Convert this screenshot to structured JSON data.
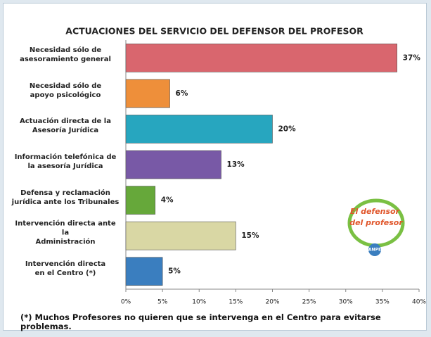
{
  "chart_data": {
    "type": "barh",
    "title": "ACTUACIONES DEL SERVICIO DEL DEFENSOR DEL PROFESOR",
    "categories": [
      "Necesidad sólo de\nasesoramiento general",
      "Necesidad sólo de\napoyo psicológico",
      "Actuación directa de la\nAsesoría Jurídica",
      "Información telefónica de\nla asesoría Jurídica",
      "Defensa y reclamación\njurídica ante los Tribunales",
      "Intervención directa ante\nla\nAdministración",
      "Intervención directa\nen el Centro (*)"
    ],
    "values": [
      37,
      6,
      20,
      13,
      4,
      15,
      5
    ],
    "value_labels": [
      "37%",
      "6%",
      "20%",
      "13%",
      "4%",
      "15%",
      "5%"
    ],
    "colors": [
      "#d9666e",
      "#ee8f3a",
      "#27a6bf",
      "#7859a6",
      "#66a83a",
      "#d9d7a4",
      "#3a7ebf"
    ],
    "xlim": [
      0,
      40
    ],
    "xticks": [
      {
        "value": 0,
        "label": "0%"
      },
      {
        "value": 5,
        "label": "5%"
      },
      {
        "value": 10,
        "label": "10%"
      },
      {
        "value": 15,
        "label": "15%"
      },
      {
        "value": 20,
        "label": "20%"
      },
      {
        "value": 25,
        "label": "25%"
      },
      {
        "value": 30,
        "label": "30%"
      },
      {
        "value": 35,
        "label": "35%"
      },
      {
        "value": 40,
        "label": "40%"
      }
    ],
    "grid": false,
    "footnote": "(*) Muchos Profesores no quieren que se intervenga en el Centro para evitarse problemas.",
    "logo": {
      "line1": "El defensor",
      "line2": "del profesor",
      "brand": "ANPE"
    }
  }
}
